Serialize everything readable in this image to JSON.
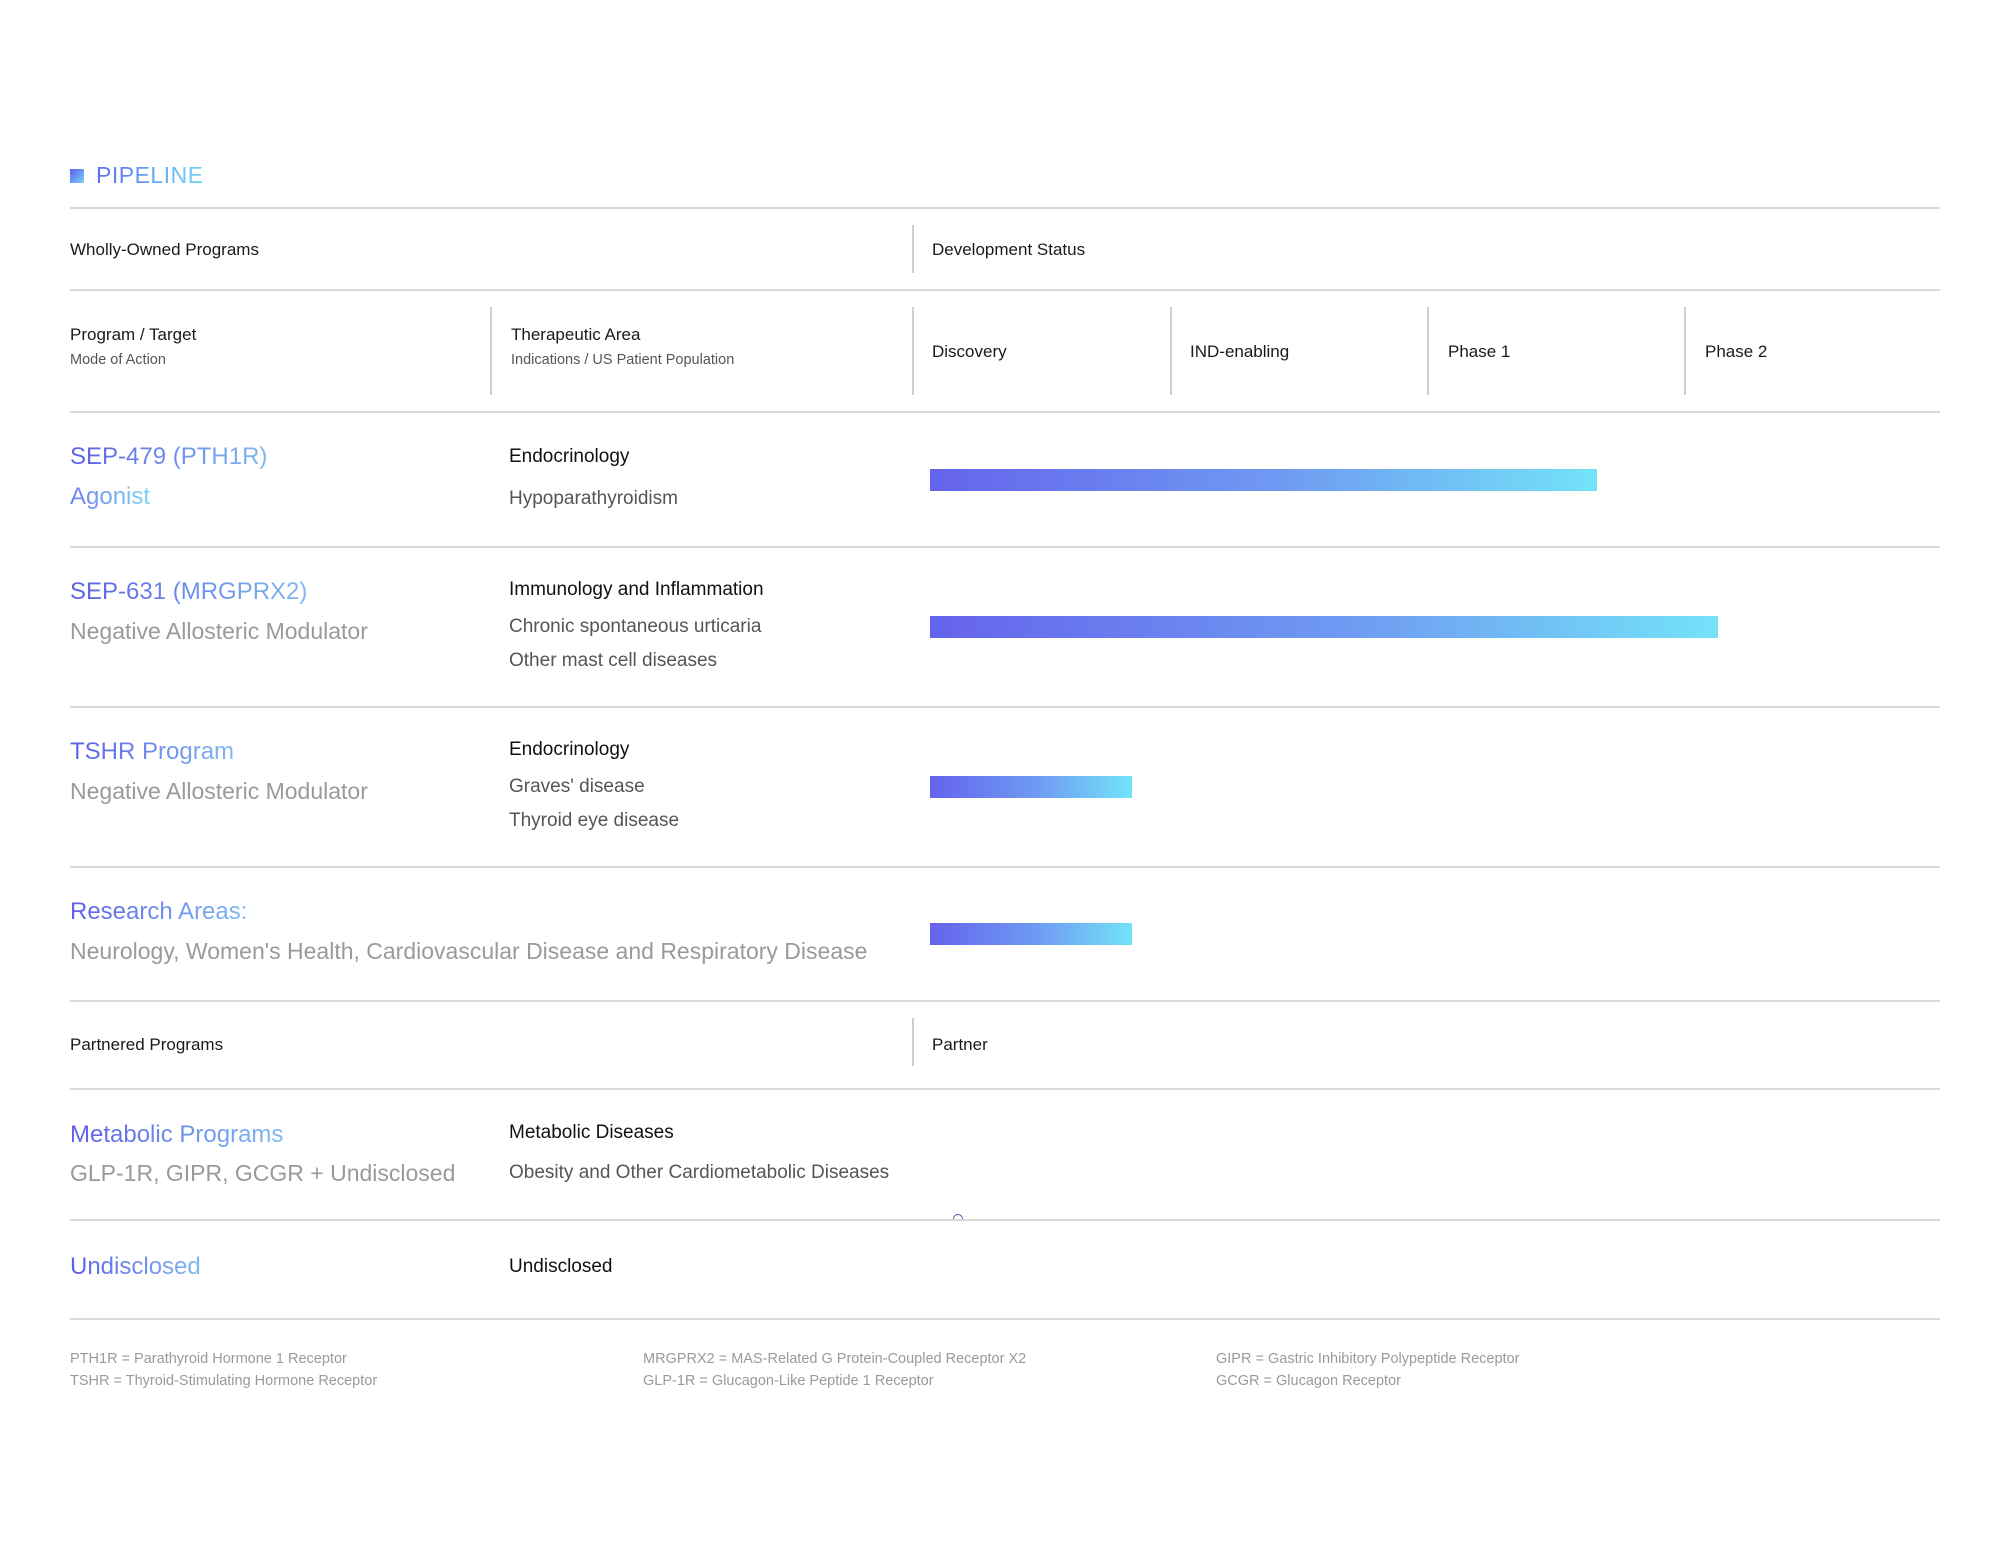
{
  "section": {
    "label": "PIPELINE"
  },
  "headers": {
    "wholly_owned": "Wholly-Owned Programs",
    "development_status": "Development Status",
    "program_target": "Program / Target",
    "mode_of_action": "Mode of Action",
    "therapeutic_area": "Therapeutic Area",
    "indications": "Indications / US Patient Population",
    "stages": [
      "Discovery",
      "IND-enabling",
      "Phase 1",
      "Phase 2"
    ],
    "partnered": "Partnered Programs",
    "partner": "Partner"
  },
  "programs": [
    {
      "title": "SEP-479 (PTH1R)",
      "subtitle": "Agonist",
      "area": "Endocrinology",
      "indications": [
        "Hypoparathyroidism"
      ],
      "progress_fraction": 0.66
    },
    {
      "title": "SEP-631 (MRGPRX2)",
      "subtitle": "Negative Allosteric Modulator",
      "area": "Immunology and Inflammation",
      "indications": [
        "Chronic spontaneous urticaria",
        "Other mast cell diseases"
      ],
      "progress_fraction": 0.78
    },
    {
      "title": "TSHR Program",
      "subtitle": "Negative Allosteric Modulator",
      "area": "Endocrinology",
      "indications": [
        "Graves' disease",
        "Thyroid eye disease"
      ],
      "progress_fraction": 0.2
    },
    {
      "title": "Research Areas:",
      "subtitle": "Neurology, Women's Health, Cardiovascular Disease and Respiratory Disease",
      "progress_fraction": 0.2
    }
  ],
  "partnered": [
    {
      "title": "Metabolic Programs",
      "subtitle": "GLP-1R, GIPR, GCGR + Undisclosed",
      "area": "Metabolic Diseases",
      "indications": [
        "Obesity and Other Cardiometabolic Diseases"
      ]
    },
    {
      "title": "Undisclosed",
      "area": "Undisclosed"
    }
  ],
  "footnotes": [
    [
      "PTH1R = Parathyroid Hormone 1 Receptor",
      "TSHR = Thyroid-Stimulating Hormone Receptor"
    ],
    [
      "MRGPRX2 = MAS-Related G Protein-Coupled Receptor X2",
      "GLP-1R = Glucagon-Like Peptide 1 Receptor"
    ],
    [
      "GIPR = Gastric Inhibitory Polypeptide Receptor",
      "GCGR = Glucagon Receptor"
    ]
  ],
  "colors": {
    "accent_start": "#6563ec",
    "accent_end": "#73e3f8",
    "divider": "#d9d9d9"
  }
}
